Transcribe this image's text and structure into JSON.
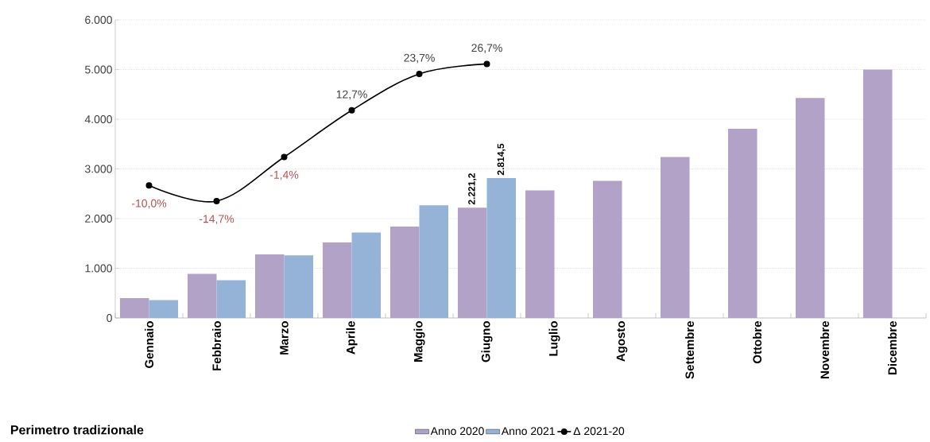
{
  "chart_data": {
    "type": "bar",
    "categories": [
      "Gennaio",
      "Febbraio",
      "Marzo",
      "Aprile",
      "Maggio",
      "Giugno",
      "Luglio",
      "Agosto",
      "Settembre",
      "Ottobre",
      "Novembre",
      "Dicembre"
    ],
    "series": [
      {
        "name": "Anno 2020",
        "color": "#b3a2c8",
        "values": [
          400,
          890,
          1280,
          1520,
          1840,
          2221.2,
          2570,
          2760,
          3240,
          3810,
          4430,
          5000
        ],
        "value_labels": [
          null,
          null,
          null,
          null,
          null,
          "2.221,2",
          null,
          null,
          null,
          null,
          null,
          null
        ]
      },
      {
        "name": "Anno 2021",
        "color": "#95b3d7",
        "values": [
          360,
          760,
          1260,
          1720,
          2270,
          2814.5,
          null,
          null,
          null,
          null,
          null,
          null
        ],
        "value_labels": [
          null,
          null,
          null,
          null,
          null,
          "2.814,5",
          null,
          null,
          null,
          null,
          null,
          null
        ]
      },
      {
        "name": "Δ 2021-20",
        "type": "line",
        "axis": "y2",
        "color": "#000000",
        "values": [
          -10.0,
          -14.7,
          -1.4,
          12.7,
          23.7,
          26.7,
          null,
          null,
          null,
          null,
          null,
          null
        ],
        "value_labels": [
          "-10,0%",
          "-14,7%",
          "-1,4%",
          "12,7%",
          "23,7%",
          "26,7%",
          null,
          null,
          null,
          null,
          null,
          null
        ]
      }
    ],
    "ylim": [
      0,
      6000
    ],
    "yticks": [
      0,
      {
        "value": 1000,
        "label": "1.000"
      },
      {
        "value": 2000,
        "label": "2.000"
      },
      {
        "value": 3000,
        "label": "3.000"
      },
      {
        "value": 4000,
        "label": "4.000"
      },
      {
        "value": 5000,
        "label": "5.000"
      },
      {
        "value": 6000,
        "label": "6.000"
      }
    ],
    "y2lim": [
      -50,
      40
    ],
    "grid": "y",
    "legend": "bottom",
    "marker": "circle",
    "annotations": [
      "**Perimetro tradizionale**"
    ]
  }
}
